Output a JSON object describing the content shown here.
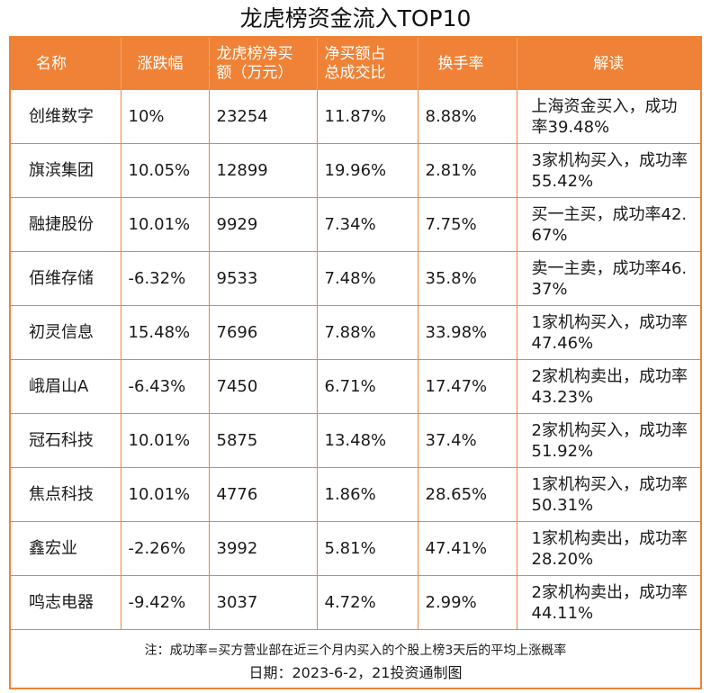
{
  "title": "龙虎榜资金流入TOP10",
  "headers": {
    "name": "名称",
    "change": "涨跌幅",
    "net_buy_line1": "龙虎榜净买",
    "net_buy_line2": "额（万元）",
    "ratio_line1": "净买额占",
    "ratio_line2": "总成交比",
    "turnover": "换手率",
    "interpretation": "解读"
  },
  "rows": [
    {
      "name": "创维数字",
      "change": "10%",
      "net_buy": "23254",
      "ratio": "11.87%",
      "turnover": "8.88%",
      "interpretation": "上海资金买入，成功率39.48%"
    },
    {
      "name": "旗滨集团",
      "change": "10.05%",
      "net_buy": "12899",
      "ratio": "19.96%",
      "turnover": "2.81%",
      "interpretation": "3家机构买入，成功率55.42%"
    },
    {
      "name": "融捷股份",
      "change": "10.01%",
      "net_buy": "9929",
      "ratio": "7.34%",
      "turnover": "7.75%",
      "interpretation": "买一主买，成功率42.67%"
    },
    {
      "name": "佰维存储",
      "change": "-6.32%",
      "net_buy": "9533",
      "ratio": "7.48%",
      "turnover": "35.8%",
      "interpretation": "卖一主卖，成功率46.37%"
    },
    {
      "name": "初灵信息",
      "change": "15.48%",
      "net_buy": "7696",
      "ratio": "7.88%",
      "turnover": "33.98%",
      "interpretation": "1家机构买入，成功率47.46%"
    },
    {
      "name": "峨眉山A",
      "change": "-6.43%",
      "net_buy": "7450",
      "ratio": "6.71%",
      "turnover": "17.47%",
      "interpretation": "2家机构卖出，成功率43.23%"
    },
    {
      "name": "冠石科技",
      "change": "10.01%",
      "net_buy": "5875",
      "ratio": "13.48%",
      "turnover": "37.4%",
      "interpretation": "2家机构买入，成功率51.92%"
    },
    {
      "name": "焦点科技",
      "change": "10.01%",
      "net_buy": "4776",
      "ratio": "1.86%",
      "turnover": "28.65%",
      "interpretation": "1家机构买入，成功率50.31%"
    },
    {
      "name": "鑫宏业",
      "change": "-2.26%",
      "net_buy": "3992",
      "ratio": "5.81%",
      "turnover": "47.41%",
      "interpretation": "1家机构卖出，成功率28.20%"
    },
    {
      "name": "鸣志电器",
      "change": "-9.42%",
      "net_buy": "3037",
      "ratio": "4.72%",
      "turnover": "2.99%",
      "interpretation": "2家机构卖出，成功率44.11%"
    }
  ],
  "footer": {
    "note": "注：成功率=买方营业部在近三个月内买入的个股上榜3天后的平均上涨概率",
    "date": "日期：2023-6-2，21投资通制图"
  },
  "colors": {
    "accent": "#ef8236",
    "header_text": "#ffffff",
    "body_text": "#1a1a1a"
  }
}
